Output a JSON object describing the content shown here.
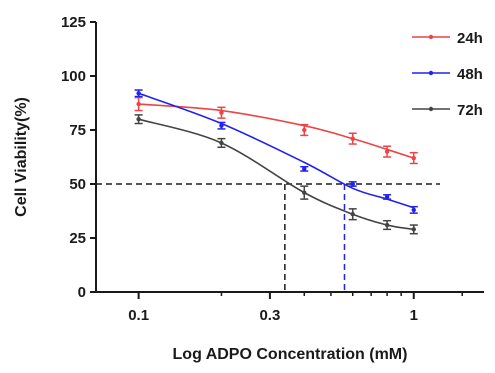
{
  "chart_data": {
    "type": "line",
    "xscale": "log",
    "xlim": [
      0.07,
      1.8
    ],
    "ylim": [
      0,
      125
    ],
    "xticks": [
      0.1,
      0.3,
      1
    ],
    "xtick_labels": [
      "0.1",
      "0.3",
      "1"
    ],
    "xtick_minor": [
      0.2,
      0.4,
      0.5,
      0.6,
      0.7,
      0.8,
      0.9,
      1.5
    ],
    "yticks": [
      0,
      25,
      50,
      75,
      100,
      125
    ],
    "ytick_labels": [
      "0",
      "25",
      "50",
      "75",
      "100",
      "125"
    ],
    "xlabel": "Log ADPO Concentration (mM)",
    "ylabel": "Cell Viability(%)",
    "grid": false,
    "legend_position": "top-right",
    "reference_lines": {
      "y50": 50,
      "ic50_72h": 0.34,
      "ic50_48h": 0.56
    },
    "series": [
      {
        "name": "24h",
        "color": "#ee4444",
        "x": [
          0.1,
          0.2,
          0.4,
          0.6,
          0.8,
          1.0
        ],
        "y": [
          87,
          83,
          75,
          71,
          65,
          62
        ],
        "err": [
          3,
          2.5,
          2.5,
          2.5,
          2.5,
          2.5
        ],
        "fit": [
          87,
          84,
          77,
          71,
          66,
          62
        ]
      },
      {
        "name": "48h",
        "color": "#2222ee",
        "x": [
          0.1,
          0.2,
          0.4,
          0.6,
          0.8,
          1.0
        ],
        "y": [
          92,
          77,
          57,
          50,
          44,
          38
        ],
        "err": [
          1.5,
          1.5,
          1,
          1,
          1,
          1.5
        ],
        "fit": [
          92,
          78,
          60,
          48,
          43,
          39
        ]
      },
      {
        "name": "72h",
        "color": "#444444",
        "x": [
          0.1,
          0.2,
          0.4,
          0.6,
          0.8,
          1.0
        ],
        "y": [
          80,
          69,
          46,
          36,
          31,
          29
        ],
        "err": [
          2,
          2,
          3,
          2.5,
          2,
          2
        ],
        "fit": [
          80,
          69,
          46,
          36,
          31,
          29
        ]
      }
    ]
  }
}
